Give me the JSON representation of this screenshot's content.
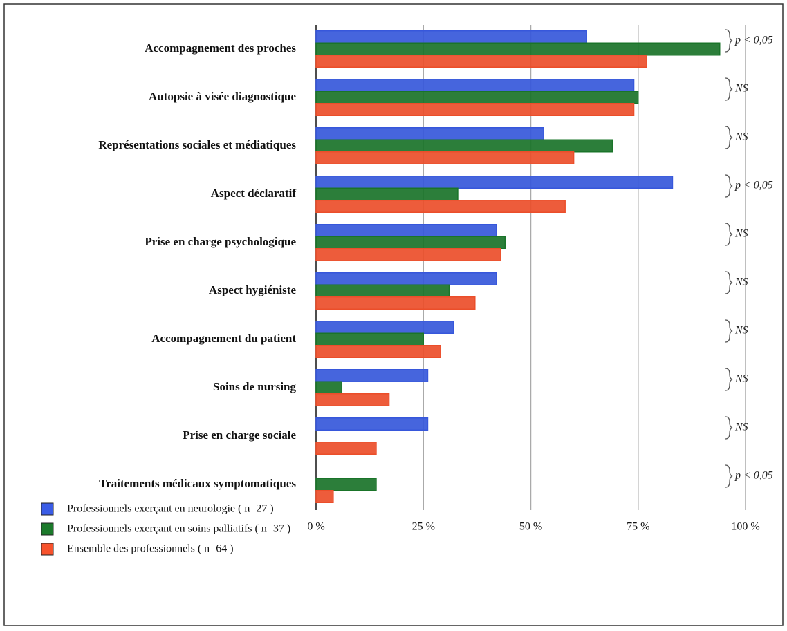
{
  "chart_data": {
    "type": "barh",
    "categories": [
      "Accompagnement des proches",
      "Autopsie à visée diagnostique",
      "Représentations sociales et médiatiques",
      "Aspect déclaratif",
      "Prise en charge psychologique",
      "Aspect hygiéniste",
      "Accompagnement du patient",
      "Soins de nursing",
      "Prise en charge sociale",
      "Traitements médicaux symptomatiques"
    ],
    "annotations": [
      "p < 0,05",
      "NS",
      "NS",
      "p < 0,05",
      "NS",
      "NS",
      "NS",
      "NS",
      "NS",
      "p < 0,05"
    ],
    "series": [
      {
        "name": "Professionnels exerçant en neurologie ( n=27 )",
        "color": "#3a5ce6",
        "values": [
          63,
          74,
          53,
          83,
          42,
          42,
          32,
          26,
          26,
          null
        ]
      },
      {
        "name": "Professionnels exerçant en soins palliatifs ( n=37 )",
        "color": "#1b7a2b",
        "values": [
          94,
          75,
          69,
          33,
          44,
          31,
          25,
          6,
          null,
          14
        ]
      },
      {
        "name": "Ensemble des professionnels ( n=64 )",
        "color": "#f7522c",
        "values": [
          77,
          74,
          60,
          58,
          43,
          37,
          29,
          17,
          14,
          4
        ]
      }
    ],
    "xlim": [
      0,
      100
    ],
    "xticks": [
      {
        "value": 0,
        "label": "0 %"
      },
      {
        "value": 25,
        "label": "25 %"
      },
      {
        "value": 50,
        "label": "50 %"
      },
      {
        "value": 75,
        "label": "75 %"
      },
      {
        "value": 100,
        "label": "100 %"
      }
    ],
    "grid": true
  }
}
